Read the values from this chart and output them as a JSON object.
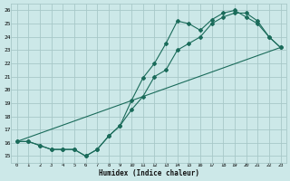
{
  "xlabel": "Humidex (Indice chaleur)",
  "bg_color": "#cce8e8",
  "grid_color": "#a8c8c8",
  "line_color": "#1a6b5a",
  "xlim": [
    -0.5,
    23.5
  ],
  "ylim": [
    14.5,
    26.5
  ],
  "xticks": [
    0,
    1,
    2,
    3,
    4,
    5,
    6,
    7,
    8,
    9,
    10,
    11,
    12,
    13,
    14,
    15,
    16,
    17,
    18,
    19,
    20,
    21,
    22,
    23
  ],
  "yticks": [
    15,
    16,
    17,
    18,
    19,
    20,
    21,
    22,
    23,
    24,
    25,
    26
  ],
  "line1_x": [
    0,
    1,
    2,
    3,
    4,
    5,
    6,
    7,
    8,
    9,
    10,
    11,
    12,
    13,
    14,
    15,
    16,
    17,
    18,
    19,
    20,
    21,
    22,
    23
  ],
  "line1_y": [
    16.1,
    16.1,
    15.8,
    15.5,
    15.5,
    15.5,
    15.0,
    15.5,
    16.5,
    17.3,
    18.5,
    19.5,
    21.0,
    21.5,
    23.0,
    23.5,
    24.0,
    25.0,
    25.5,
    25.8,
    25.8,
    25.2,
    24.0,
    23.2
  ],
  "line2_x": [
    0,
    1,
    2,
    3,
    4,
    5,
    6,
    7,
    8,
    9,
    10,
    11,
    12,
    13,
    14,
    15,
    16,
    17,
    18,
    19,
    20,
    21,
    22,
    23
  ],
  "line2_y": [
    16.1,
    16.1,
    15.8,
    15.5,
    15.5,
    15.5,
    15.0,
    15.5,
    16.5,
    17.3,
    19.2,
    20.9,
    22.0,
    23.5,
    25.2,
    25.0,
    24.5,
    25.3,
    25.8,
    26.0,
    25.5,
    25.0,
    24.0,
    23.2
  ],
  "line3_x": [
    0,
    23
  ],
  "line3_y": [
    16.1,
    23.2
  ]
}
